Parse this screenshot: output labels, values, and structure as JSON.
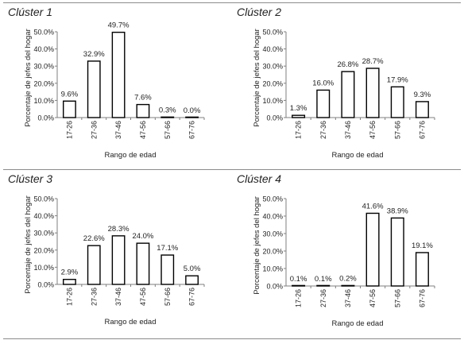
{
  "chart_data": [
    {
      "type": "bar",
      "title": "Clúster 1",
      "xlabel": "Rango de edad",
      "ylabel": "Porcentaje de jefes del hogar",
      "categories": [
        "17-26",
        "27-36",
        "37-46",
        "47-56",
        "57-66",
        "67-76"
      ],
      "values": [
        9.6,
        32.9,
        49.7,
        7.6,
        0.3,
        0.0
      ],
      "value_labels": [
        "9.6%",
        "32.9%",
        "49.7%",
        "7.6%",
        "0.3%",
        "0.0%"
      ],
      "ylim": [
        0,
        50
      ],
      "yticks": [
        "0.0%",
        "10.0%",
        "20.0%",
        "30.0%",
        "40.0%",
        "50.0%"
      ],
      "grid": false
    },
    {
      "type": "bar",
      "title": "Clúster 2",
      "xlabel": "Rango de edad",
      "ylabel": "Porcentaje de jefes del hogar",
      "categories": [
        "17-26",
        "27-36",
        "37-46",
        "47-56",
        "57-66",
        "67-76"
      ],
      "values": [
        1.3,
        16.0,
        26.8,
        28.7,
        17.9,
        9.3
      ],
      "value_labels": [
        "1.3%",
        "16.0%",
        "26.8%",
        "28.7%",
        "17.9%",
        "9.3%"
      ],
      "ylim": [
        0,
        50
      ],
      "yticks": [
        "0.0%",
        "10.0%",
        "20.0%",
        "30.0%",
        "40.0%",
        "50.0%"
      ],
      "grid": false
    },
    {
      "type": "bar",
      "title": "Clúster 3",
      "xlabel": "Rango de edad",
      "ylabel": "Porcentaje de jefes del hogar",
      "categories": [
        "17-26",
        "27-36",
        "37-46",
        "47-56",
        "57-66",
        "67-76"
      ],
      "values": [
        2.9,
        22.6,
        28.3,
        24.0,
        17.1,
        5.0
      ],
      "value_labels": [
        "2.9%",
        "22.6%",
        "28.3%",
        "24.0%",
        "17.1%",
        "5.0%"
      ],
      "ylim": [
        0,
        50
      ],
      "yticks": [
        "0.0%",
        "10.0%",
        "20.0%",
        "30.0%",
        "40.0%",
        "50.0%"
      ],
      "grid": false
    },
    {
      "type": "bar",
      "title": "Clúster 4",
      "xlabel": "Rango de edad",
      "ylabel": "Porcentaje de jefes del hogar",
      "categories": [
        "17-26",
        "27-36",
        "37-46",
        "47-56",
        "57-66",
        "67-76"
      ],
      "values": [
        0.1,
        0.1,
        0.2,
        41.6,
        38.9,
        19.1
      ],
      "value_labels": [
        "0.1%",
        "0.1%",
        "0.2%",
        "41.6%",
        "38.9%",
        "19.1%"
      ],
      "ylim": [
        0,
        50
      ],
      "yticks": [
        "0.0%",
        "10.0%",
        "20.0%",
        "30.0%",
        "40.0%",
        "50.0%"
      ],
      "grid": false
    }
  ],
  "colors": {
    "bar_fill": "#ffffff",
    "bar_stroke": "#000000",
    "text": "#222222",
    "rule": "#8c8c8c"
  }
}
